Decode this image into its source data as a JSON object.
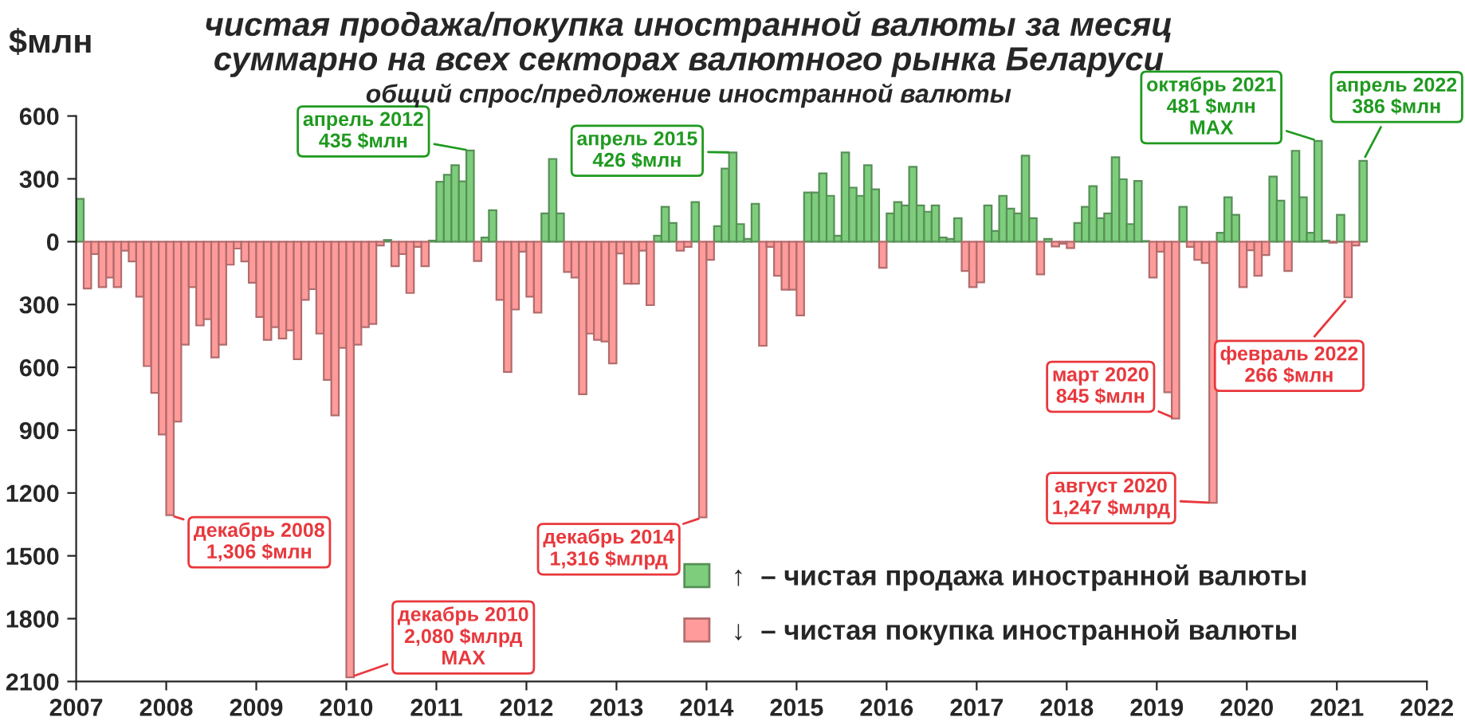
{
  "chart_data": {
    "type": "bar",
    "title": "чистая продажа/покупка иностранной валюты за месяц\nсуммарно на всех секторах валютного рынка Беларуси",
    "subtitle": "общий спрос/предложение иностранной валюты",
    "ylabel": "$млн",
    "x": [
      "2007-01",
      "2007-02",
      "2007-03",
      "2007-04",
      "2007-05",
      "2007-06",
      "2007-07",
      "2007-08",
      "2007-09",
      "2007-10",
      "2007-11",
      "2007-12",
      "2008-01",
      "2008-02",
      "2008-03",
      "2008-04",
      "2008-05",
      "2008-06",
      "2008-07",
      "2008-08",
      "2008-09",
      "2008-10",
      "2008-11",
      "2008-12",
      "2009-01",
      "2009-02",
      "2009-03",
      "2009-04",
      "2009-05",
      "2009-06",
      "2009-07",
      "2009-08",
      "2009-09",
      "2009-10",
      "2009-11",
      "2009-12",
      "2010-01",
      "2010-02",
      "2010-03",
      "2010-04",
      "2010-05",
      "2010-06",
      "2010-07",
      "2010-08",
      "2010-09",
      "2010-10",
      "2010-11",
      "2010-12",
      "2011-01",
      "2011-02",
      "2011-03",
      "2011-04",
      "2011-05",
      "2011-06",
      "2011-07",
      "2011-08",
      "2011-09",
      "2011-10",
      "2011-11",
      "2011-12",
      "2012-01",
      "2012-02",
      "2012-03",
      "2012-04",
      "2012-05",
      "2012-06",
      "2012-07",
      "2012-08",
      "2012-09",
      "2012-10",
      "2012-11",
      "2012-12",
      "2013-01",
      "2013-02",
      "2013-03",
      "2013-04",
      "2013-05",
      "2013-06",
      "2013-07",
      "2013-08",
      "2013-09",
      "2013-10",
      "2013-11",
      "2013-12",
      "2014-01",
      "2014-02",
      "2014-03",
      "2014-04",
      "2014-05",
      "2014-06",
      "2014-07",
      "2014-08",
      "2014-09",
      "2014-10",
      "2014-11",
      "2014-12",
      "2015-01",
      "2015-02",
      "2015-03",
      "2015-04",
      "2015-05",
      "2015-06",
      "2015-07",
      "2015-08",
      "2015-09",
      "2015-10",
      "2015-11",
      "2015-12",
      "2016-01",
      "2016-02",
      "2016-03",
      "2016-04",
      "2016-05",
      "2016-06",
      "2016-07",
      "2016-08",
      "2016-09",
      "2016-10",
      "2016-11",
      "2016-12",
      "2017-01",
      "2017-02",
      "2017-03",
      "2017-04",
      "2017-05",
      "2017-06",
      "2017-07",
      "2017-08",
      "2017-09",
      "2017-10",
      "2017-11",
      "2017-12",
      "2018-01",
      "2018-02",
      "2018-03",
      "2018-04",
      "2018-05",
      "2018-06",
      "2018-07",
      "2018-08",
      "2018-09",
      "2018-10",
      "2018-11",
      "2018-12",
      "2019-01",
      "2019-02",
      "2019-03",
      "2019-04",
      "2019-05",
      "2019-06",
      "2019-07",
      "2019-08",
      "2019-09",
      "2019-10",
      "2019-11",
      "2019-12",
      "2020-01",
      "2020-02",
      "2020-03",
      "2020-04",
      "2020-05",
      "2020-06",
      "2020-07",
      "2020-08",
      "2020-09",
      "2020-10",
      "2020-11",
      "2020-12",
      "2021-01",
      "2021-02",
      "2021-03",
      "2021-04"
    ],
    "series": [
      {
        "name": "↑  – чистая продажа иностранной валюты",
        "color": "#7dcd7d",
        "values": [
          204,
          null,
          null,
          null,
          null,
          null,
          null,
          null,
          null,
          null,
          null,
          null,
          null,
          null,
          null,
          null,
          null,
          null,
          null,
          null,
          null,
          null,
          null,
          null,
          null,
          null,
          null,
          null,
          null,
          null,
          null,
          null,
          null,
          null,
          null,
          null,
          null,
          null,
          null,
          null,
          null,
          8,
          null,
          null,
          null,
          null,
          null,
          5,
          286,
          319,
          365,
          288,
          435,
          null,
          20,
          150,
          null,
          null,
          null,
          null,
          null,
          null,
          135,
          395,
          135,
          null,
          null,
          null,
          null,
          null,
          null,
          null,
          null,
          null,
          null,
          null,
          null,
          28,
          166,
          89,
          null,
          null,
          189,
          null,
          null,
          74,
          349,
          426,
          84,
          13,
          181,
          null,
          null,
          null,
          null,
          null,
          null,
          235,
          235,
          326,
          219,
          28,
          426,
          258,
          219,
          365,
          250,
          null,
          135,
          189,
          173,
          357,
          173,
          143,
          173,
          20,
          13,
          112,
          null,
          null,
          null,
          173,
          51,
          219,
          158,
          135,
          411,
          112,
          null,
          13,
          null,
          null,
          null,
          89,
          166,
          265,
          112,
          135,
          403,
          298,
          84,
          290,
          3,
          null,
          null,
          null,
          null,
          166,
          null,
          null,
          null,
          null,
          43,
          212,
          128,
          null,
          null,
          null,
          null,
          311,
          196,
          null,
          434,
          212,
          43,
          481,
          5,
          null,
          128,
          null,
          null,
          386
        ]
      },
      {
        "name": "↓  – чистая покупка иностранной валюты",
        "color": "#ff9b9b",
        "values": [
          null,
          -224,
          -59,
          -217,
          -171,
          -217,
          -43,
          -94,
          -263,
          -594,
          -722,
          -921,
          -1306,
          -859,
          -492,
          -217,
          -400,
          -370,
          -553,
          -492,
          -110,
          -33,
          -94,
          -196,
          -360,
          -469,
          -408,
          -462,
          -423,
          -561,
          -278,
          -227,
          -439,
          -660,
          -829,
          -507,
          -2080,
          -492,
          -408,
          -393,
          -18,
          null,
          -117,
          -59,
          -245,
          -25,
          -117,
          null,
          null,
          null,
          null,
          null,
          null,
          -92,
          null,
          null,
          -278,
          -622,
          -324,
          -48,
          -263,
          -339,
          null,
          null,
          null,
          -145,
          -171,
          -729,
          -439,
          -469,
          -477,
          -581,
          -56,
          -201,
          -201,
          -43,
          -303,
          null,
          null,
          null,
          -43,
          -25,
          null,
          -1316,
          -87,
          null,
          null,
          null,
          null,
          null,
          null,
          -497,
          -25,
          -163,
          -229,
          -229,
          -352,
          null,
          null,
          null,
          null,
          null,
          null,
          null,
          null,
          null,
          null,
          -125,
          null,
          null,
          null,
          null,
          null,
          null,
          null,
          null,
          null,
          null,
          -140,
          -217,
          -194,
          null,
          null,
          null,
          null,
          null,
          null,
          null,
          -156,
          null,
          -23,
          -10,
          -31,
          null,
          null,
          null,
          null,
          null,
          null,
          null,
          null,
          null,
          null,
          -171,
          -48,
          -719,
          -845,
          null,
          -25,
          -87,
          -102,
          -1247,
          null,
          null,
          null,
          -217,
          -41,
          -163,
          -64,
          null,
          null,
          -140,
          null,
          null,
          null,
          null,
          null,
          -5,
          null,
          -266,
          -18,
          null
        ]
      }
    ],
    "xlim": [
      "2007",
      "2022"
    ],
    "xticks": [
      "2007",
      "2008",
      "2009",
      "2010",
      "2011",
      "2012",
      "2013",
      "2014",
      "2015",
      "2016",
      "2017",
      "2018",
      "2019",
      "2020",
      "2021",
      "2022"
    ],
    "ylim": [
      -2100,
      600
    ],
    "yticks": [
      600,
      300,
      0,
      {
        "value": -300,
        "label": "300"
      },
      {
        "value": -600,
        "label": "600"
      },
      {
        "value": -900,
        "label": "900"
      },
      {
        "value": -1200,
        "label": "1200"
      },
      {
        "value": -1500,
        "label": "1500"
      },
      {
        "value": -1800,
        "label": "1800"
      },
      {
        "value": -2100,
        "label": "2100"
      }
    ],
    "annotations": [
      {
        "text": "декабрь 2008\n1,306 $млн",
        "x": "2008-01",
        "y": -1306
      },
      {
        "text": "декабрь 2010\n2,080 $млрд\nMAX",
        "x": "2010-01",
        "y": -2080
      },
      {
        "text": "апрель 2012\n435 $млн",
        "x": "2011-05",
        "y": 435
      },
      {
        "text": "декабрь 2014\n1,316 $млрд",
        "x": "2013-12",
        "y": -1316
      },
      {
        "text": "апрель 2015\n426 $млн",
        "x": "2014-04",
        "y": 426
      },
      {
        "text": "март 2020\n845 $млн",
        "x": "2019-03",
        "y": -845
      },
      {
        "text": "август 2020\n1,247 $млрд",
        "x": "2019-08",
        "y": -1247
      },
      {
        "text": "октябрь 2021\n481 $млн\nMAX",
        "x": "2020-10",
        "y": 481
      },
      {
        "text": "февраль 2022\n266 $млн",
        "x": "2021-02",
        "y": -266
      },
      {
        "text": "апрель 2022\n386 $млн",
        "x": "2021-04",
        "y": 386
      }
    ],
    "legend": "bottom right",
    "grid": false
  }
}
